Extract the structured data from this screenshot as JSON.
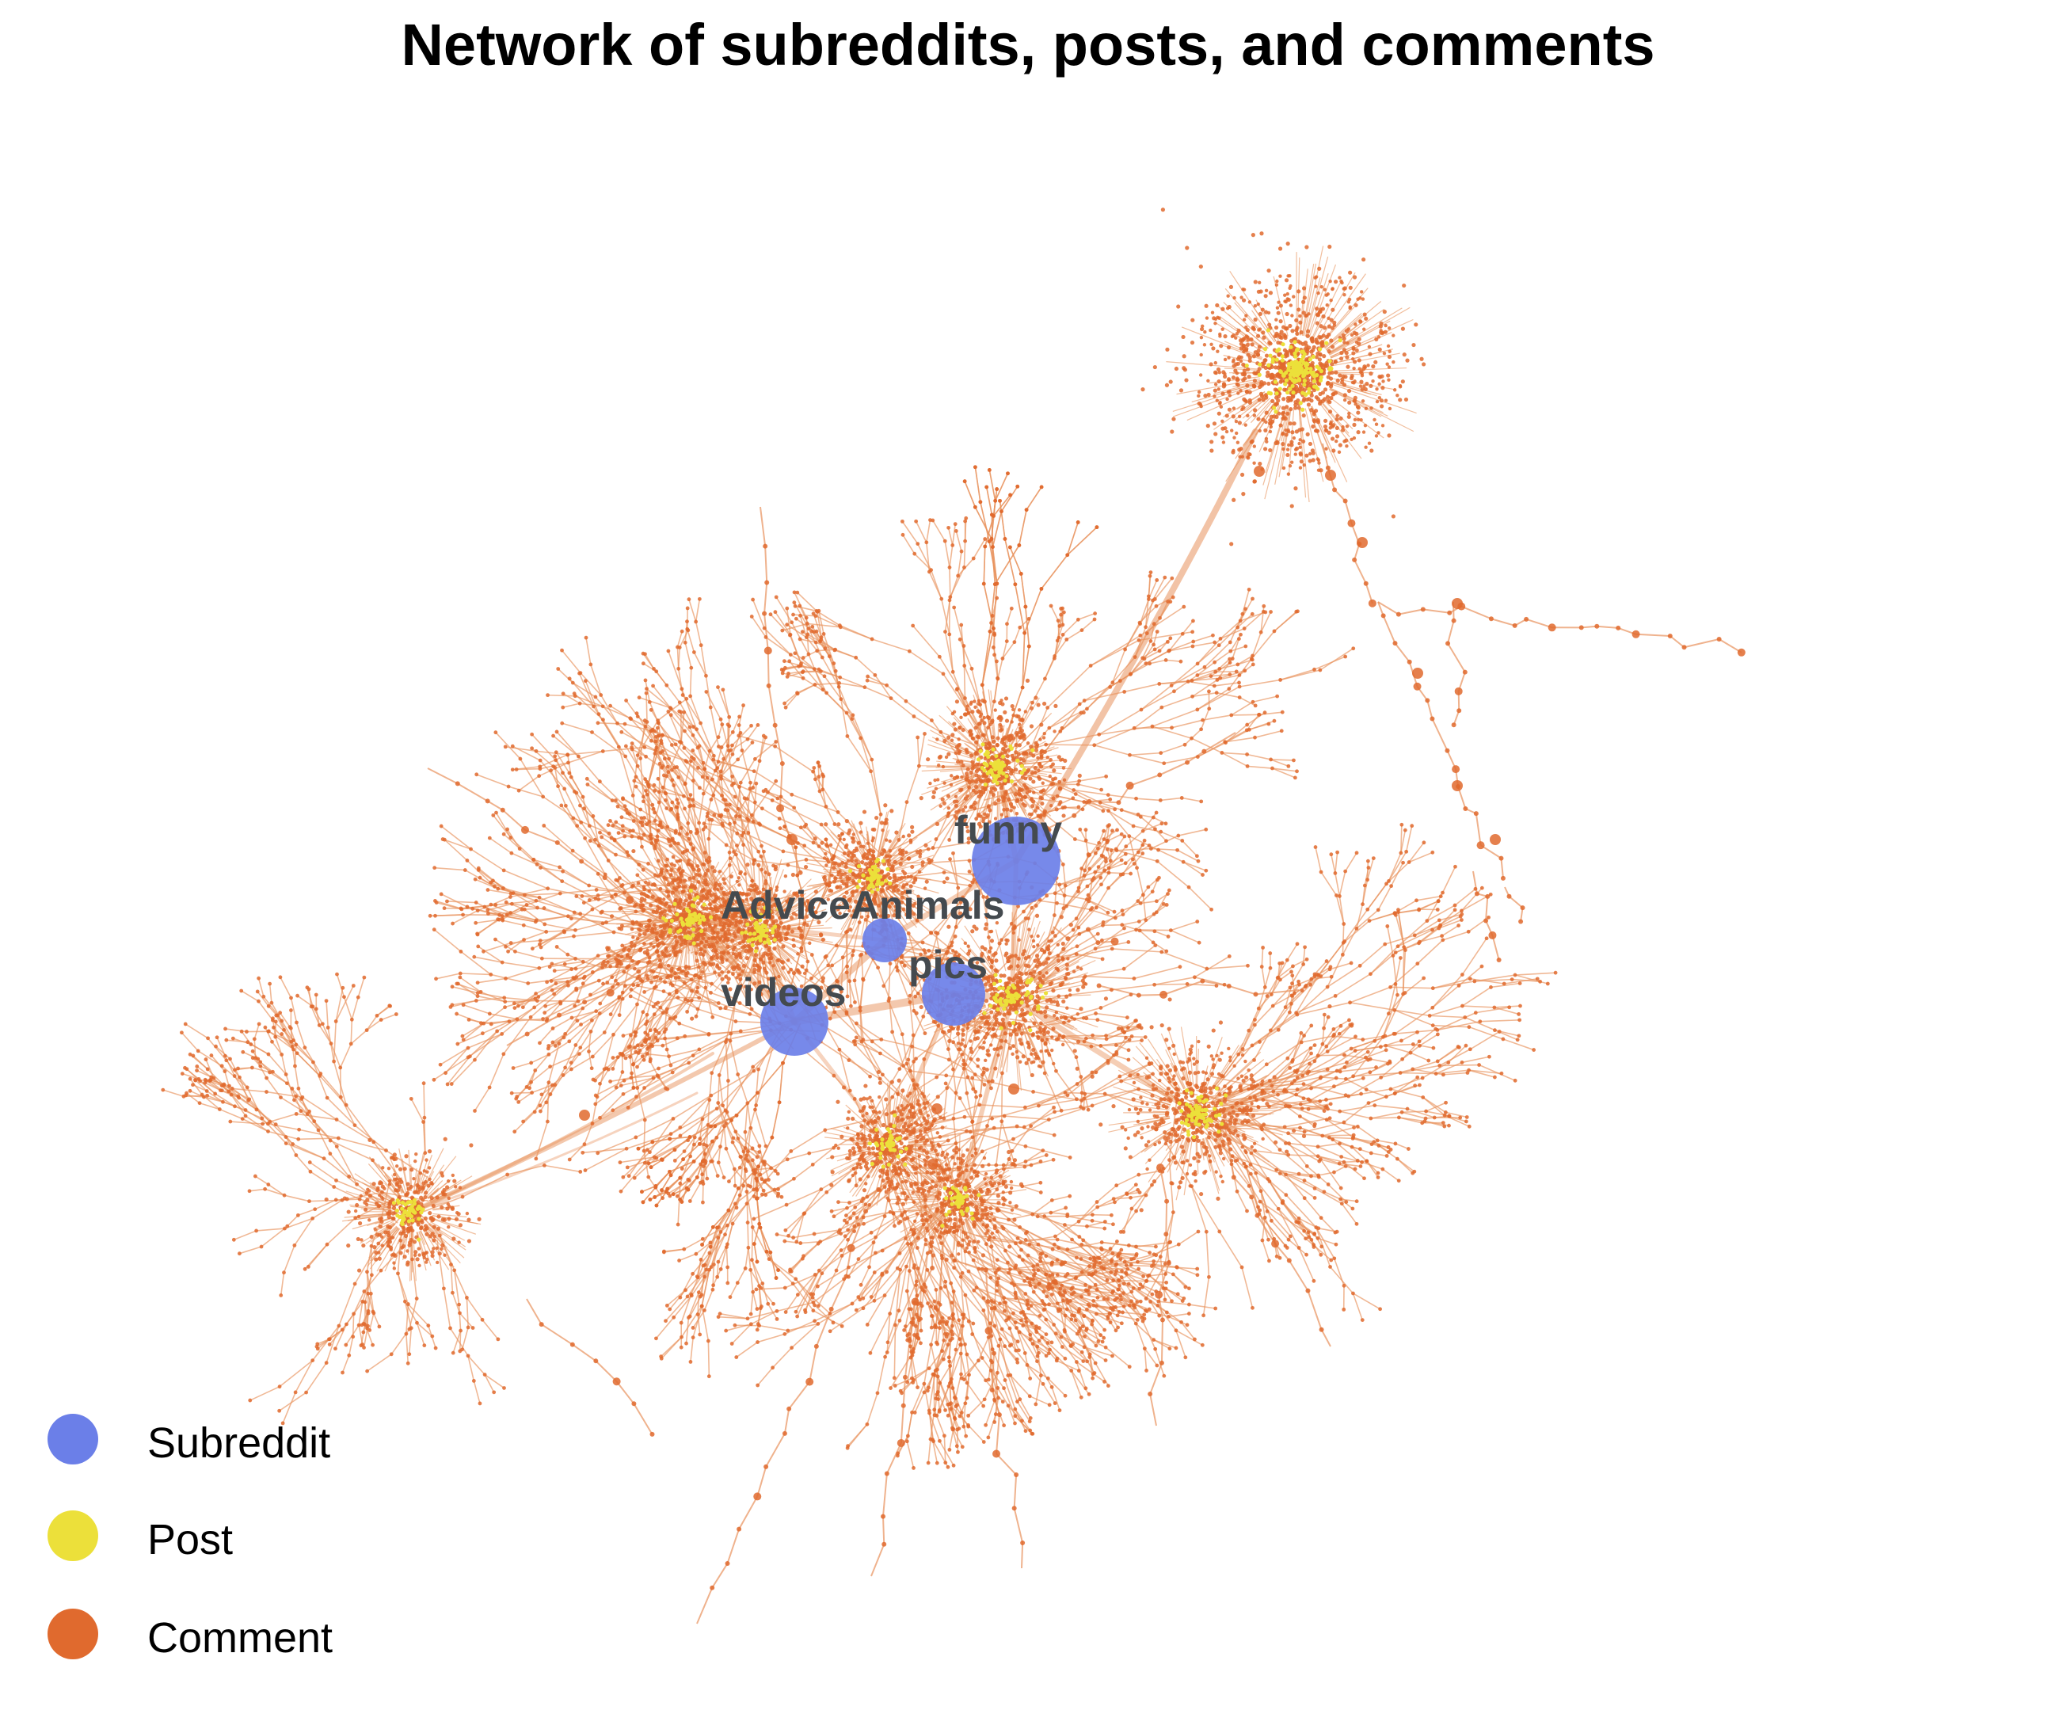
{
  "title": "Network of subreddits, posts, and comments",
  "colors": {
    "subreddit": "#6b7fe8",
    "post": "#ece03a",
    "comment": "#e06a2e",
    "edge": "#e8925c"
  },
  "subreddits": [
    {
      "name": "funny"
    },
    {
      "name": "AdviceAnimals"
    },
    {
      "name": "pics"
    },
    {
      "name": "videos"
    }
  ],
  "legend": [
    {
      "label": "Subreddit",
      "color": "#6b7fe8"
    },
    {
      "label": "Post",
      "color": "#ece03a"
    },
    {
      "label": "Comment",
      "color": "#e06a2e"
    }
  ]
}
